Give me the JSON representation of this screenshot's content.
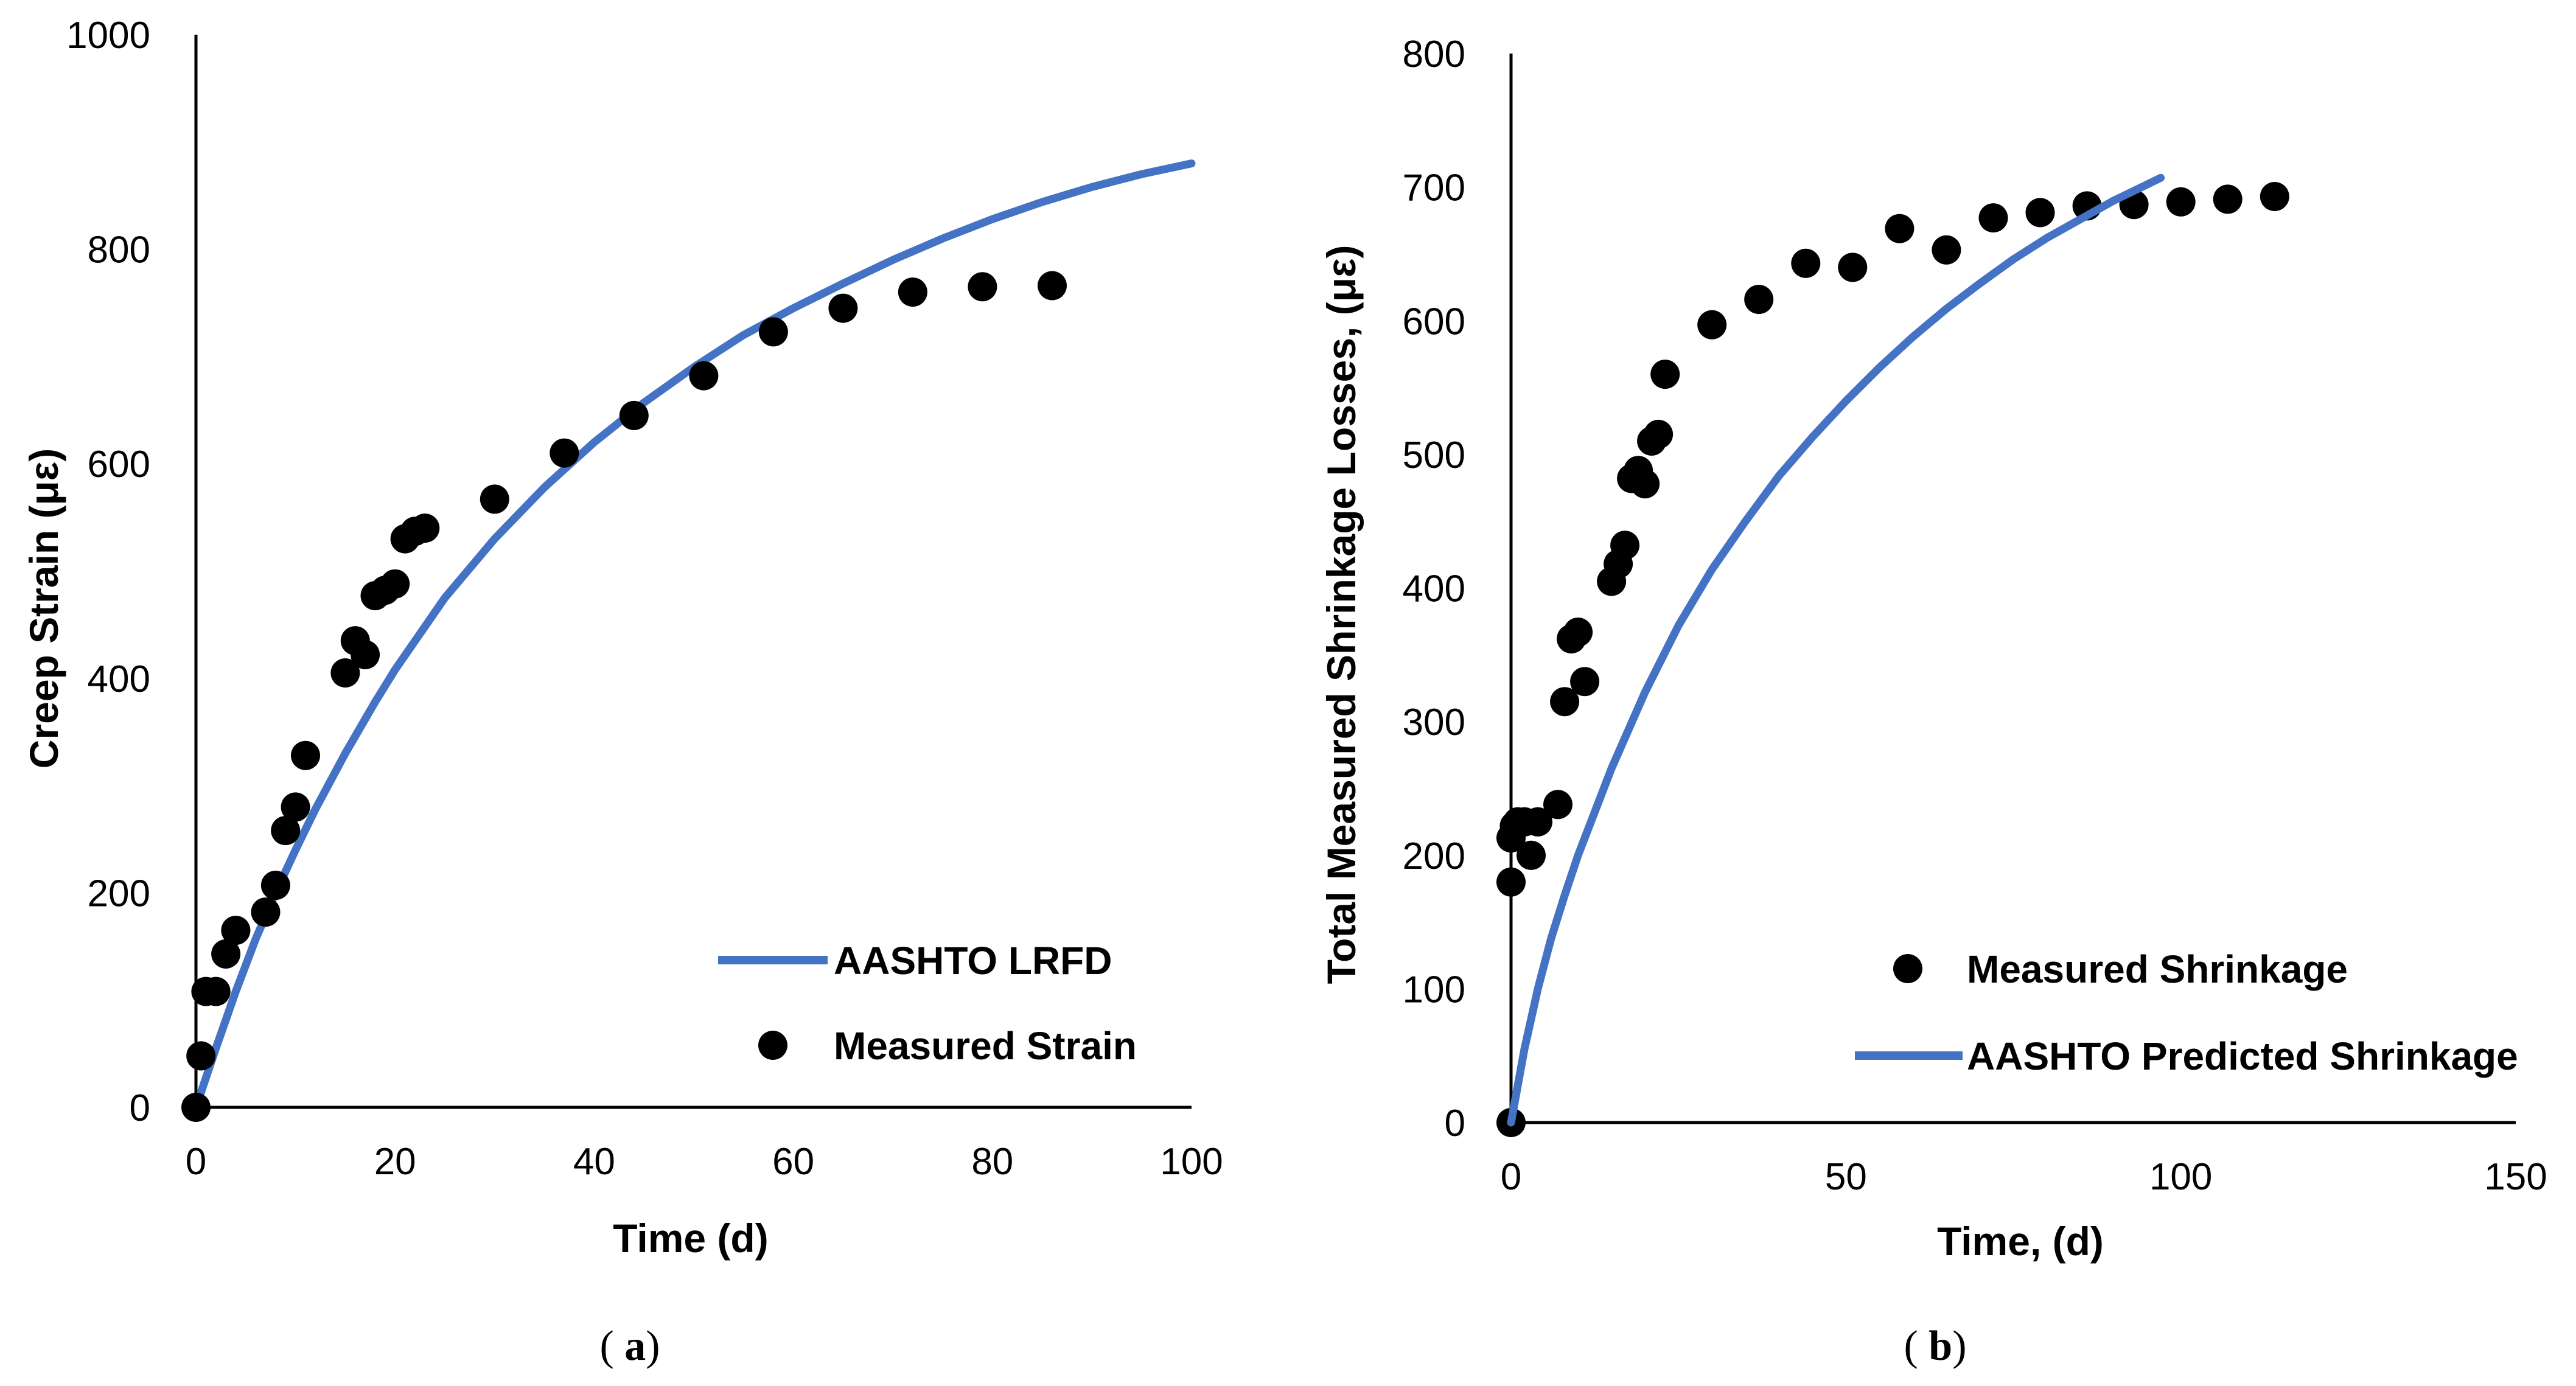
{
  "chart_data": [
    {
      "type": "scatter",
      "panel": "a",
      "panel_label": "(a)",
      "xlabel": "Time (d)",
      "ylabel": "Creep Strain (με)",
      "xlim": [
        0,
        100
      ],
      "ylim": [
        0,
        1000
      ],
      "xticks": [
        0,
        20,
        40,
        60,
        80,
        100
      ],
      "yticks": [
        0,
        200,
        400,
        600,
        800,
        1000
      ],
      "legend_position": "bottom-right",
      "series": [
        {
          "name": "AASHTO LRFD",
          "kind": "line",
          "color": "#4472C4",
          "x": [
            0,
            2,
            4,
            6,
            8,
            10,
            12,
            15,
            18,
            20,
            25,
            30,
            35,
            40,
            45,
            50,
            55,
            60,
            65,
            70,
            75,
            80,
            85,
            90,
            95,
            100
          ],
          "y": [
            0,
            55,
            108,
            157,
            200,
            240,
            278,
            330,
            378,
            408,
            475,
            530,
            578,
            620,
            657,
            690,
            720,
            745,
            768,
            790,
            810,
            828,
            844,
            858,
            870,
            880
          ]
        },
        {
          "name": "Measured Strain",
          "kind": "scatter",
          "color": "#000000",
          "x": [
            0,
            0.5,
            1,
            2,
            3,
            4,
            7,
            8,
            9,
            10,
            11,
            15,
            16,
            17,
            18,
            19,
            20,
            21,
            22,
            23,
            30,
            37,
            44,
            51,
            58,
            65,
            72,
            79,
            86
          ],
          "y": [
            0,
            48,
            108,
            108,
            143,
            165,
            182,
            207,
            258,
            280,
            328,
            405,
            435,
            422,
            477,
            482,
            488,
            530,
            537,
            540,
            567,
            610,
            645,
            682,
            723,
            745,
            760,
            765,
            766
          ]
        }
      ]
    },
    {
      "type": "scatter",
      "panel": "b",
      "panel_label": "(b)",
      "xlabel": "Time, (d)",
      "ylabel": "Total Measured Shrinkage Losses, (με)",
      "xlim": [
        0,
        150
      ],
      "ylim": [
        0,
        800
      ],
      "xticks": [
        0,
        50,
        100,
        150
      ],
      "yticks": [
        0,
        100,
        200,
        300,
        400,
        500,
        600,
        700,
        800
      ],
      "legend_position": "bottom-right",
      "series": [
        {
          "name": "Measured Shrinkage",
          "kind": "scatter",
          "color": "#000000",
          "x": [
            0,
            0,
            0,
            0.5,
            1,
            2,
            3,
            4,
            7,
            8,
            9,
            10,
            11,
            15,
            16,
            17,
            18,
            19,
            20,
            21,
            22,
            23,
            30,
            37,
            44,
            51,
            58,
            65,
            72,
            79,
            86,
            93,
            100,
            107,
            114
          ],
          "y": [
            0,
            180,
            213,
            222,
            225,
            225,
            200,
            225,
            238,
            315,
            362,
            367,
            330,
            405,
            418,
            432,
            482,
            488,
            478,
            510,
            515,
            560,
            597,
            616,
            643,
            640,
            669,
            653,
            677,
            681,
            686,
            687,
            689,
            691,
            693
          ]
        },
        {
          "name": "AASHTO Predicted Shrinkage",
          "kind": "line",
          "color": "#4472C4",
          "x": [
            0,
            2,
            4,
            6,
            8,
            10,
            15,
            20,
            25,
            30,
            35,
            40,
            45,
            50,
            55,
            60,
            65,
            70,
            75,
            80,
            85,
            90,
            97
          ],
          "y": [
            0,
            55,
            100,
            138,
            170,
            200,
            265,
            322,
            372,
            414,
            450,
            484,
            513,
            540,
            565,
            588,
            609,
            628,
            646,
            662,
            676,
            690,
            707
          ]
        }
      ]
    }
  ]
}
